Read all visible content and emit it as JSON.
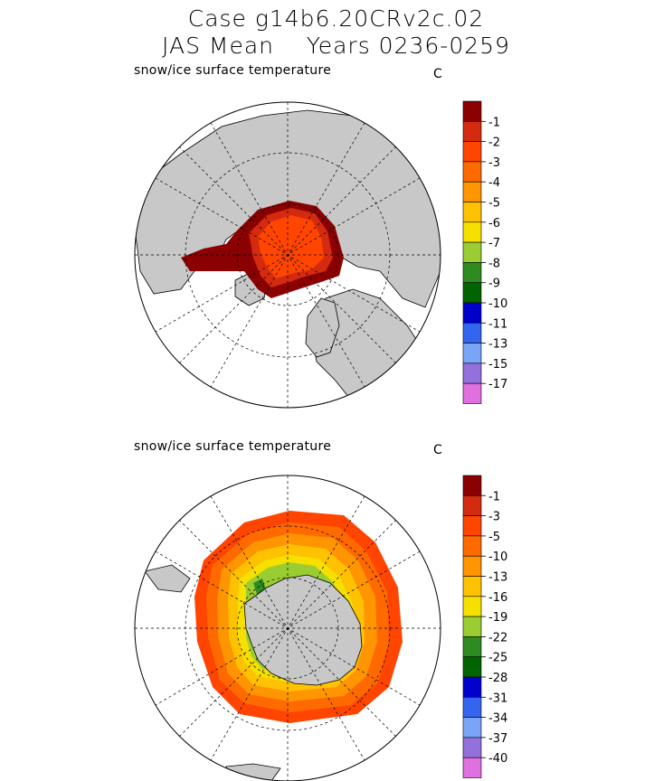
{
  "header": {
    "title_line1": "Case g14b6.20CRv2c.02",
    "title_line2": "JAS Mean    Years 0236-0259"
  },
  "panels": [
    {
      "variable_label": "snow/ice surface temperature",
      "unit_label": "C",
      "hemisphere": "north",
      "colorbar": {
        "labels": [
          "-1",
          "-2",
          "-3",
          "-4",
          "-5",
          "-6",
          "-7",
          "-8",
          "-9",
          "-10",
          "-11",
          "-13",
          "-15",
          "-17"
        ],
        "colors": [
          "#8b0000",
          "#d42a0f",
          "#ff4500",
          "#ff6a00",
          "#ff9500",
          "#ffc200",
          "#f5e000",
          "#9acd32",
          "#2e8b22",
          "#006400",
          "#0000cd",
          "#3465f0",
          "#7aa4f5",
          "#9370db",
          "#e070e0"
        ]
      }
    },
    {
      "variable_label": "snow/ice surface temperature",
      "unit_label": "C",
      "hemisphere": "south",
      "colorbar": {
        "labels": [
          "-1",
          "-3",
          "-5",
          "-10",
          "-13",
          "-16",
          "-19",
          "-22",
          "-25",
          "-28",
          "-31",
          "-34",
          "-37",
          "-40"
        ],
        "colors": [
          "#8b0000",
          "#d42a0f",
          "#ff4500",
          "#ff6a00",
          "#ff9500",
          "#ffc200",
          "#f5e000",
          "#9acd32",
          "#2e8b22",
          "#006400",
          "#0000cd",
          "#3465f0",
          "#7aa4f5",
          "#9370db",
          "#e070e0"
        ]
      }
    }
  ],
  "style": {
    "land_color": "#c8c8c8",
    "ocean_color": "#ffffff"
  }
}
